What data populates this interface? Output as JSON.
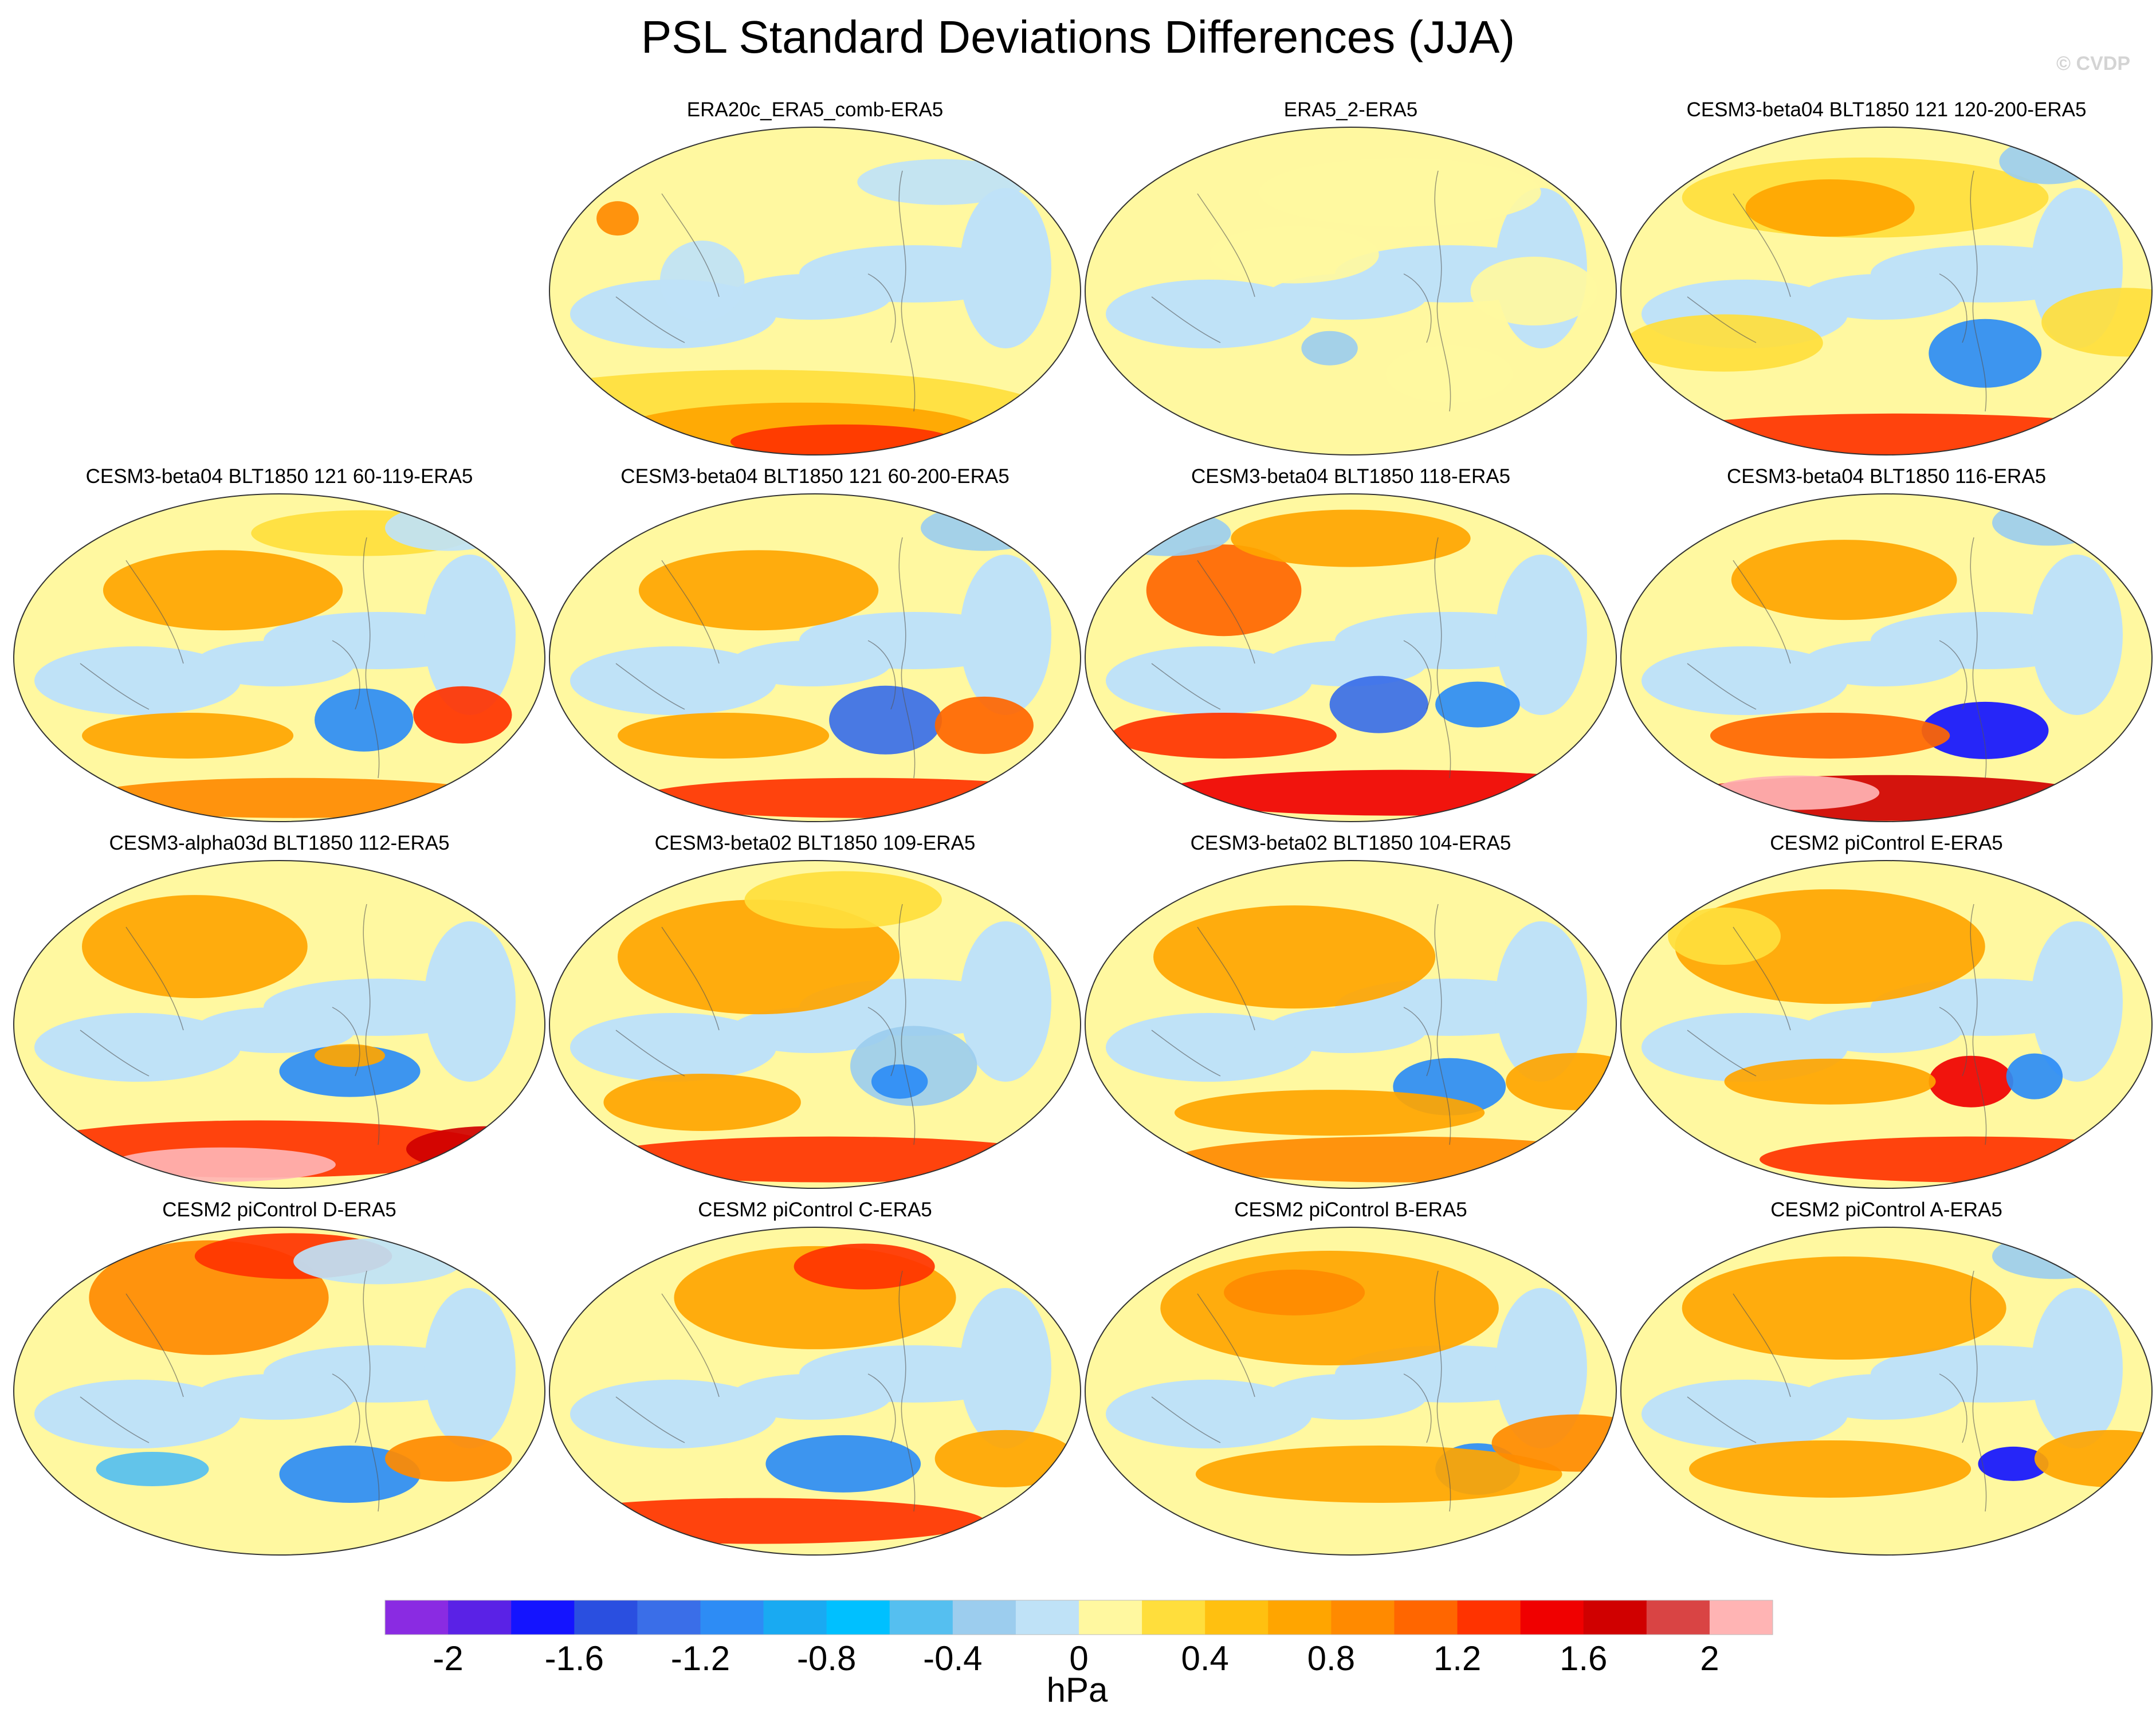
{
  "title": "PSL Standard Deviations Differences (JJA)",
  "watermark": "© CVDP",
  "panels": [
    {
      "label": "ERA20c_ERA5_comb-ERA5"
    },
    {
      "label": "ERA5_2-ERA5"
    },
    {
      "label": "CESM3-beta04 BLT1850 121 120-200-ERA5"
    },
    {
      "label": "CESM3-beta04 BLT1850 121 60-119-ERA5"
    },
    {
      "label": "CESM3-beta04 BLT1850 121 60-200-ERA5"
    },
    {
      "label": "CESM3-beta04 BLT1850 118-ERA5"
    },
    {
      "label": "CESM3-beta04 BLT1850 116-ERA5"
    },
    {
      "label": "CESM3-alpha03d BLT1850 112-ERA5"
    },
    {
      "label": "CESM3-beta02 BLT1850 109-ERA5"
    },
    {
      "label": "CESM3-beta02 BLT1850 104-ERA5"
    },
    {
      "label": "CESM2 piControl E-ERA5"
    },
    {
      "label": "CESM2 piControl D-ERA5"
    },
    {
      "label": "CESM2 piControl C-ERA5"
    },
    {
      "label": "CESM2 piControl B-ERA5"
    },
    {
      "label": "CESM2 piControl A-ERA5"
    }
  ],
  "colorbar": {
    "unit": "hPa",
    "tick_labels": [
      "-2",
      "-1.6",
      "-1.2",
      "-0.8",
      "-0.4",
      "0",
      "0.4",
      "0.8",
      "1.2",
      "1.6",
      "2"
    ],
    "colors": [
      "#8a2be2",
      "#5a22e6",
      "#1414ff",
      "#2a4fe0",
      "#3a6ee8",
      "#2d8cf5",
      "#19aaf2",
      "#00c0ff",
      "#55bff0",
      "#9ccdee",
      "#bfe2f7",
      "#fff8a0",
      "#ffde3c",
      "#ffc010",
      "#ffa500",
      "#ff8a00",
      "#ff6600",
      "#ff3300",
      "#f00000",
      "#d00000",
      "#d94444",
      "#ffb4b4"
    ]
  }
}
